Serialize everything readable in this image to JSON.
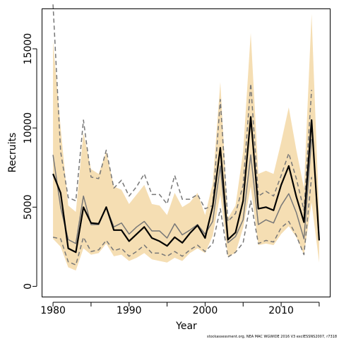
{
  "chart_data": {
    "type": "line",
    "xlabel": "Year",
    "ylabel": "Recruits",
    "xlim": [
      1978.6,
      2016.4
    ],
    "ylim": [
      -650,
      17500
    ],
    "x_ticks": [
      1980,
      1985,
      1990,
      1995,
      2000,
      2005,
      2010,
      2015
    ],
    "x_tick_labels": [
      "1980",
      "1990",
      "2000",
      "2010"
    ],
    "y_ticks": [
      0,
      5000,
      10000,
      15000
    ],
    "y_tick_labels": [
      "0",
      "5000",
      "10000",
      "15000"
    ],
    "x": [
      1980,
      1981,
      1982,
      1983,
      1984,
      1985,
      1986,
      1987,
      1988,
      1989,
      1990,
      1991,
      1992,
      1993,
      1994,
      1995,
      1996,
      1997,
      1998,
      1999,
      2000,
      2001,
      2002,
      2003,
      2004,
      2005,
      2006,
      2007,
      2008,
      2009,
      2010,
      2011,
      2012,
      2013,
      2014,
      2015
    ],
    "series": [
      {
        "role": "confidence-band",
        "color": "#f5deb3",
        "upper": [
          15500,
          10000,
          5100,
          4700,
          9700,
          7400,
          7100,
          8500,
          6300,
          6100,
          5200,
          5800,
          6400,
          5200,
          5100,
          4500,
          5900,
          5000,
          5300,
          5900,
          4500,
          6500,
          12900,
          4300,
          5100,
          8500,
          16000,
          7100,
          7300,
          7100,
          9100,
          11300,
          8600,
          6200,
          17200,
          4400
        ],
        "lower": [
          3000,
          2500,
          1200,
          1000,
          2400,
          2000,
          2100,
          2700,
          1900,
          2000,
          1600,
          1800,
          2100,
          1700,
          1600,
          1500,
          1800,
          1600,
          2100,
          2400,
          2100,
          3200,
          5800,
          1900,
          2100,
          3700,
          6300,
          2600,
          2700,
          2600,
          3300,
          3800,
          3100,
          2000,
          5300,
          1500
        ]
      },
      {
        "role": "estimate",
        "color": "#000000",
        "values": [
          7100,
          5900,
          2400,
          2150,
          5000,
          4000,
          3950,
          5000,
          3550,
          3550,
          2850,
          3300,
          3750,
          3050,
          2850,
          2550,
          3100,
          2750,
          3350,
          3850,
          3050,
          5050,
          8750,
          2950,
          3400,
          5400,
          10700,
          4900,
          5000,
          4800,
          6400,
          7600,
          5650,
          4050,
          10500,
          2900
        ]
      },
      {
        "role": "comparison",
        "color": "#777777",
        "values": [
          8300,
          5000,
          2950,
          2700,
          5700,
          3900,
          3900,
          5000,
          3750,
          4000,
          3300,
          3750,
          4100,
          3500,
          3500,
          3050,
          3950,
          3250,
          3550,
          3900,
          3300,
          4100,
          7600,
          2750,
          3150,
          4200,
          8300,
          3900,
          4200,
          4000,
          5100,
          5850,
          4650,
          3000,
          9300,
          null
        ]
      },
      {
        "role": "comparison-upper",
        "color": "#777777",
        "dashed": true,
        "values": [
          17800,
          8500,
          5600,
          5400,
          10500,
          6900,
          6800,
          8600,
          6200,
          6700,
          5700,
          6300,
          7100,
          5800,
          5800,
          5200,
          7000,
          5500,
          5500,
          5800,
          4900,
          5100,
          11800,
          4100,
          4600,
          6400,
          12800,
          5700,
          6000,
          5700,
          7000,
          8400,
          6800,
          4800,
          12400,
          null
        ]
      },
      {
        "role": "comparison-lower",
        "color": "#777777",
        "dashed": true,
        "values": [
          3100,
          3000,
          1550,
          1350,
          3100,
          2200,
          2300,
          2900,
          2250,
          2400,
          1900,
          2200,
          2600,
          2100,
          2100,
          1900,
          2200,
          1900,
          2300,
          2600,
          2200,
          2700,
          4900,
          1850,
          2150,
          2750,
          5400,
          2700,
          2900,
          2800,
          3700,
          4100,
          3200,
          2000,
          6900,
          null
        ]
      }
    ],
    "grid": false,
    "legend": "none"
  },
  "caption": "stockassessment.org, NEA MAC WGWIDE 2016 V3 excIESSNS2007, r7318"
}
